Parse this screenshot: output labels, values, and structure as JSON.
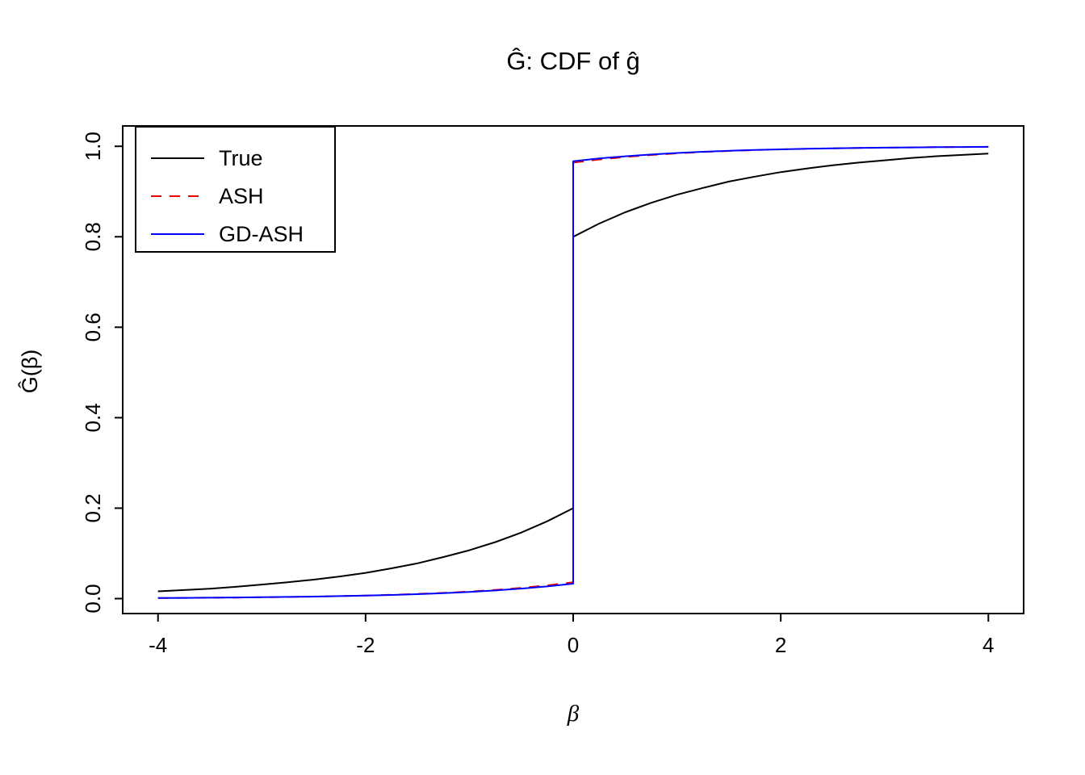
{
  "chart_data": {
    "type": "line",
    "title": "Ĝ: CDF of ĝ",
    "xlabel": "β",
    "ylabel": "Ĝ(β)",
    "xlim": [
      -4.34,
      4.34
    ],
    "ylim": [
      -0.033,
      1.045
    ],
    "grid": false,
    "x_ticks": {
      "values": [
        -4,
        -2,
        0,
        2,
        4
      ],
      "labels": [
        "-4",
        "-2",
        "0",
        "2",
        "4"
      ]
    },
    "y_ticks": {
      "values": [
        0.0,
        0.2,
        0.4,
        0.6,
        0.8,
        1.0
      ],
      "labels": [
        "0.0",
        "0.2",
        "0.4",
        "0.6",
        "0.8",
        "1.0"
      ]
    },
    "legend": {
      "position": "topleft",
      "entries": [
        {
          "label": "True",
          "color": "#000000",
          "line_style": "solid"
        },
        {
          "label": "ASH",
          "color": "#E60000",
          "line_style": "dashed"
        },
        {
          "label": "GD-ASH",
          "color": "#0000FF",
          "line_style": "solid"
        }
      ]
    },
    "series": [
      {
        "name": "True",
        "color": "#000000",
        "line_style": "solid",
        "jump_at": 0,
        "points": [
          [
            -4,
            0.016
          ],
          [
            -3.75,
            0.019
          ],
          [
            -3.5,
            0.022
          ],
          [
            -3.25,
            0.026
          ],
          [
            -3,
            0.031
          ],
          [
            -2.75,
            0.036
          ],
          [
            -2.5,
            0.042
          ],
          [
            -2.25,
            0.049
          ],
          [
            -2,
            0.057
          ],
          [
            -1.75,
            0.067
          ],
          [
            -1.5,
            0.078
          ],
          [
            -1.25,
            0.092
          ],
          [
            -1,
            0.107
          ],
          [
            -0.75,
            0.125
          ],
          [
            -0.5,
            0.146
          ],
          [
            -0.25,
            0.171
          ],
          [
            0,
            0.2
          ],
          [
            0,
            0.8
          ],
          [
            0.25,
            0.829
          ],
          [
            0.5,
            0.854
          ],
          [
            0.75,
            0.875
          ],
          [
            1,
            0.893
          ],
          [
            1.25,
            0.908
          ],
          [
            1.5,
            0.922
          ],
          [
            1.75,
            0.933
          ],
          [
            2,
            0.943
          ],
          [
            2.25,
            0.951
          ],
          [
            2.5,
            0.958
          ],
          [
            2.75,
            0.964
          ],
          [
            3,
            0.969
          ],
          [
            3.25,
            0.974
          ],
          [
            3.5,
            0.978
          ],
          [
            3.75,
            0.981
          ],
          [
            4,
            0.984
          ]
        ]
      },
      {
        "name": "ASH",
        "color": "#E60000",
        "line_style": "dashed",
        "jump_at": 0,
        "points": [
          [
            -4,
            0.0013
          ],
          [
            -3.75,
            0.0016
          ],
          [
            -3.5,
            0.0019
          ],
          [
            -3.25,
            0.0024
          ],
          [
            -3,
            0.003
          ],
          [
            -2.75,
            0.0036
          ],
          [
            -2.5,
            0.0045
          ],
          [
            -2.25,
            0.0055
          ],
          [
            -2,
            0.0068
          ],
          [
            -1.75,
            0.0084
          ],
          [
            -1.5,
            0.0103
          ],
          [
            -1.25,
            0.0127
          ],
          [
            -1,
            0.0156
          ],
          [
            -0.75,
            0.0193
          ],
          [
            -0.5,
            0.0237
          ],
          [
            -0.25,
            0.0292
          ],
          [
            0,
            0.036
          ],
          [
            0,
            0.964
          ],
          [
            0.25,
            0.9708
          ],
          [
            0.5,
            0.9763
          ],
          [
            0.75,
            0.9807
          ],
          [
            1,
            0.9844
          ],
          [
            1.25,
            0.9873
          ],
          [
            1.5,
            0.9897
          ],
          [
            1.75,
            0.9916
          ],
          [
            2,
            0.9932
          ],
          [
            2.25,
            0.9945
          ],
          [
            2.5,
            0.9955
          ],
          [
            2.75,
            0.9964
          ],
          [
            3,
            0.997
          ],
          [
            3.25,
            0.9976
          ],
          [
            3.5,
            0.9981
          ],
          [
            3.75,
            0.9984
          ],
          [
            4,
            0.9987
          ]
        ]
      },
      {
        "name": "GD-ASH",
        "color": "#0000FF",
        "line_style": "solid",
        "jump_at": 0,
        "points": [
          [
            -4,
            0.0013
          ],
          [
            -3.75,
            0.0016
          ],
          [
            -3.5,
            0.002
          ],
          [
            -3.25,
            0.0025
          ],
          [
            -3,
            0.003
          ],
          [
            -2.75,
            0.0037
          ],
          [
            -2.5,
            0.0045
          ],
          [
            -2.25,
            0.0055
          ],
          [
            -2,
            0.0067
          ],
          [
            -1.75,
            0.0081
          ],
          [
            -1.5,
            0.0099
          ],
          [
            -1.25,
            0.0121
          ],
          [
            -1,
            0.0148
          ],
          [
            -0.75,
            0.0181
          ],
          [
            -0.5,
            0.0221
          ],
          [
            -0.25,
            0.027
          ],
          [
            0,
            0.033
          ],
          [
            0,
            0.967
          ],
          [
            0.25,
            0.973
          ],
          [
            0.5,
            0.9779
          ],
          [
            0.75,
            0.9819
          ],
          [
            1,
            0.9852
          ],
          [
            1.25,
            0.9879
          ],
          [
            1.5,
            0.9901
          ],
          [
            1.75,
            0.9919
          ],
          [
            2,
            0.9933
          ],
          [
            2.25,
            0.9945
          ],
          [
            2.5,
            0.9955
          ],
          [
            2.75,
            0.9963
          ],
          [
            3,
            0.997
          ],
          [
            3.25,
            0.9975
          ],
          [
            3.5,
            0.998
          ],
          [
            3.75,
            0.9984
          ],
          [
            4,
            0.9987
          ]
        ]
      }
    ]
  }
}
